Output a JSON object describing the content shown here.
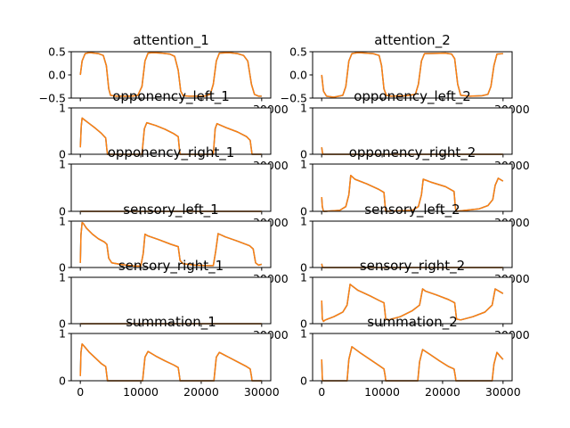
{
  "figure": {
    "colors": {
      "series_a": "#1f77b4",
      "series_b": "#ff7f0e"
    }
  },
  "chart_data": [
    {
      "type": "line",
      "title": "attention_1",
      "column": 1,
      "row": 1,
      "xlim": [
        -1500,
        31500
      ],
      "ylim": [
        -0.5,
        0.5
      ],
      "yticks": [
        -0.5,
        0.0,
        0.5
      ],
      "ytick_labels": [
        "−0.5",
        "0.0",
        "0.5"
      ],
      "xticks": [
        0,
        10000,
        20000,
        30000
      ],
      "xtick_labels": [
        "0",
        "10000",
        "20000",
        "30000"
      ],
      "show_xtick_labels": false,
      "visible_partial_xtick_label": "30000",
      "series": [
        {
          "x": [
            0,
            300,
            800,
            1500,
            3000,
            3800,
            4300,
            4700,
            5000,
            6000,
            8500,
            9500,
            10200,
            10700,
            11200,
            12000,
            13500,
            14800,
            15600,
            16200,
            16600,
            17000,
            18000,
            20500,
            21500,
            22000,
            22500,
            23000,
            24500,
            26000,
            27000,
            27700,
            28300,
            28800,
            29500,
            30000
          ],
          "y": [
            0.0,
            0.3,
            0.46,
            0.48,
            0.46,
            0.42,
            0.2,
            -0.3,
            -0.44,
            -0.46,
            -0.46,
            -0.44,
            -0.25,
            0.3,
            0.47,
            0.48,
            0.47,
            0.45,
            0.4,
            0.1,
            -0.35,
            -0.45,
            -0.46,
            -0.46,
            -0.42,
            -0.2,
            0.3,
            0.47,
            0.48,
            0.46,
            0.42,
            0.3,
            -0.2,
            -0.42,
            -0.46,
            -0.46
          ]
        }
      ]
    },
    {
      "type": "line",
      "title": "attention_2",
      "column": 2,
      "row": 1,
      "xlim": [
        -1500,
        31500
      ],
      "ylim": [
        -0.5,
        0.5
      ],
      "yticks": [
        -0.5,
        0.0,
        0.5
      ],
      "ytick_labels": [
        "−0.5",
        "0.0",
        "0.5"
      ],
      "xticks": [
        0,
        10000,
        20000,
        30000
      ],
      "xtick_labels": [
        "0",
        "10000",
        "20000",
        "30000"
      ],
      "show_xtick_labels": false,
      "visible_partial_xtick_label": "30000",
      "series": [
        {
          "x": [
            0,
            300,
            800,
            2000,
            3500,
            4000,
            4500,
            5000,
            6000,
            8500,
            9500,
            9900,
            10300,
            10700,
            11500,
            14000,
            15500,
            16000,
            16500,
            17000,
            20500,
            21500,
            22000,
            22500,
            23000,
            24500,
            26500,
            27500,
            28000,
            28500,
            29000,
            30000
          ],
          "y": [
            0.0,
            -0.35,
            -0.46,
            -0.48,
            -0.44,
            -0.25,
            0.3,
            0.46,
            0.48,
            0.46,
            0.42,
            0.2,
            -0.3,
            -0.44,
            -0.46,
            -0.45,
            -0.42,
            -0.2,
            0.3,
            0.46,
            0.47,
            0.45,
            0.35,
            -0.2,
            -0.44,
            -0.46,
            -0.45,
            -0.42,
            -0.25,
            0.2,
            0.45,
            0.46
          ]
        }
      ]
    },
    {
      "type": "line",
      "title": "opponency_left_1",
      "column": 1,
      "row": 2,
      "xlim": [
        -1500,
        31500
      ],
      "ylim": [
        0,
        1
      ],
      "yticks": [
        0,
        1
      ],
      "ytick_labels": [
        "0",
        "1"
      ],
      "xticks": [
        0,
        10000,
        20000,
        30000
      ],
      "xtick_labels": [
        "0",
        "10000",
        "20000",
        "30000"
      ],
      "show_xtick_labels": false,
      "visible_partial_xtick_label": "30000",
      "series": [
        {
          "x": [
            0,
            150,
            300,
            700,
            1500,
            2500,
            3500,
            4200,
            4400,
            4500,
            10200,
            10600,
            11000,
            12500,
            14000,
            15500,
            16200,
            16400,
            16500,
            22000,
            22300,
            22600,
            24000,
            26000,
            27500,
            28100,
            28300,
            28400,
            30000
          ],
          "y": [
            0.15,
            0.6,
            0.78,
            0.74,
            0.66,
            0.56,
            0.45,
            0.35,
            0.1,
            0.0,
            0.0,
            0.55,
            0.68,
            0.62,
            0.54,
            0.44,
            0.38,
            0.1,
            0.0,
            0.0,
            0.55,
            0.66,
            0.58,
            0.48,
            0.38,
            0.3,
            0.1,
            0.0,
            0.0
          ]
        }
      ]
    },
    {
      "type": "line",
      "title": "opponency_left_2",
      "column": 2,
      "row": 2,
      "xlim": [
        -1500,
        31500
      ],
      "ylim": [
        0,
        1
      ],
      "yticks": [
        0,
        1
      ],
      "ytick_labels": [
        "0",
        "1"
      ],
      "xticks": [
        0,
        10000,
        20000,
        30000
      ],
      "xtick_labels": [
        "0",
        "10000",
        "20000",
        "30000"
      ],
      "show_xtick_labels": false,
      "visible_partial_xtick_label": "30000",
      "series": [
        {
          "x": [
            0,
            100,
            200,
            30000
          ],
          "y": [
            0.15,
            0.05,
            0.0,
            0.0
          ]
        }
      ]
    },
    {
      "type": "line",
      "title": "opponency_right_1",
      "column": 1,
      "row": 3,
      "xlim": [
        -1500,
        31500
      ],
      "ylim": [
        0,
        1
      ],
      "yticks": [
        0,
        1
      ],
      "ytick_labels": [
        "0",
        "1"
      ],
      "xticks": [
        0,
        10000,
        20000,
        30000
      ],
      "xtick_labels": [
        "0",
        "10000",
        "20000",
        "30000"
      ],
      "show_xtick_labels": false,
      "visible_partial_xtick_label": "30000",
      "series": [
        {
          "x": [
            0,
            30000
          ],
          "y": [
            0.0,
            0.0
          ]
        }
      ]
    },
    {
      "type": "line",
      "title": "opponency_right_2",
      "column": 2,
      "row": 3,
      "xlim": [
        -1500,
        31500
      ],
      "ylim": [
        0,
        1
      ],
      "yticks": [
        0,
        1
      ],
      "ytick_labels": [
        "0",
        "1"
      ],
      "xticks": [
        0,
        10000,
        20000,
        30000
      ],
      "xtick_labels": [
        "0",
        "10000",
        "20000",
        "30000"
      ],
      "show_xtick_labels": false,
      "visible_partial_xtick_label": "30000",
      "series": [
        {
          "x": [
            0,
            100,
            300,
            500,
            3000,
            4000,
            4500,
            4800,
            5500,
            7500,
            9500,
            10300,
            10500,
            10600,
            15000,
            16000,
            16500,
            16800,
            18000,
            20500,
            21900,
            22100,
            22200,
            26000,
            27500,
            28300,
            28700,
            29200,
            30000
          ],
          "y": [
            0.3,
            0.1,
            0.0,
            0.0,
            0.02,
            0.1,
            0.35,
            0.76,
            0.68,
            0.58,
            0.46,
            0.4,
            0.1,
            0.0,
            0.02,
            0.1,
            0.35,
            0.68,
            0.62,
            0.52,
            0.42,
            0.1,
            0.0,
            0.05,
            0.12,
            0.25,
            0.55,
            0.7,
            0.64
          ]
        }
      ]
    },
    {
      "type": "line",
      "title": "sensory_left_1",
      "column": 1,
      "row": 4,
      "xlim": [
        -1500,
        31500
      ],
      "ylim": [
        0,
        1
      ],
      "yticks": [
        0,
        1
      ],
      "ytick_labels": [
        "0",
        "1"
      ],
      "xticks": [
        0,
        10000,
        20000,
        30000
      ],
      "xtick_labels": [
        "0",
        "10000",
        "20000",
        "30000"
      ],
      "show_xtick_labels": false,
      "visible_partial_xtick_label": "30000",
      "series": [
        {
          "x": [
            0,
            100,
            300,
            500,
            1000,
            2000,
            3000,
            4000,
            4400,
            4700,
            5200,
            7000,
            9000,
            10000,
            10400,
            10700,
            11200,
            13000,
            15000,
            16200,
            16500,
            17000,
            19000,
            21000,
            22000,
            22400,
            22800,
            24000,
            26000,
            28000,
            28600,
            29000,
            29500,
            30000
          ],
          "y": [
            0.1,
            0.7,
            0.97,
            0.95,
            0.85,
            0.72,
            0.62,
            0.55,
            0.5,
            0.2,
            0.1,
            0.06,
            0.03,
            0.03,
            0.3,
            0.72,
            0.68,
            0.6,
            0.5,
            0.45,
            0.15,
            0.08,
            0.05,
            0.04,
            0.04,
            0.35,
            0.73,
            0.66,
            0.57,
            0.47,
            0.4,
            0.1,
            0.05,
            0.07
          ]
        }
      ]
    },
    {
      "type": "line",
      "title": "sensory_left_2",
      "column": 2,
      "row": 4,
      "xlim": [
        -1500,
        31500
      ],
      "ylim": [
        0,
        1
      ],
      "yticks": [
        0,
        1
      ],
      "ytick_labels": [
        "0",
        "1"
      ],
      "xticks": [
        0,
        10000,
        20000,
        30000
      ],
      "xtick_labels": [
        "0",
        "10000",
        "20000",
        "30000"
      ],
      "show_xtick_labels": false,
      "visible_partial_xtick_label": "30000",
      "series": [
        {
          "x": [
            0,
            100,
            200,
            30000
          ],
          "y": [
            0.08,
            0.02,
            0.0,
            0.0
          ]
        }
      ]
    },
    {
      "type": "line",
      "title": "sensory_right_1",
      "column": 1,
      "row": 5,
      "xlim": [
        -1500,
        31500
      ],
      "ylim": [
        0,
        1
      ],
      "yticks": [
        0,
        1
      ],
      "ytick_labels": [
        "0",
        "1"
      ],
      "xticks": [
        0,
        10000,
        20000,
        30000
      ],
      "xtick_labels": [
        "0",
        "10000",
        "20000",
        "30000"
      ],
      "show_xtick_labels": false,
      "visible_partial_xtick_label": "30000",
      "series": [
        {
          "x": [
            0,
            30000
          ],
          "y": [
            0.0,
            0.0
          ]
        }
      ]
    },
    {
      "type": "line",
      "title": "sensory_right_2",
      "column": 2,
      "row": 5,
      "xlim": [
        -1500,
        31500
      ],
      "ylim": [
        0,
        1
      ],
      "yticks": [
        0,
        1
      ],
      "ytick_labels": [
        "0",
        "1"
      ],
      "xticks": [
        0,
        10000,
        20000,
        30000
      ],
      "xtick_labels": [
        "0",
        "10000",
        "20000",
        "30000"
      ],
      "show_xtick_labels": false,
      "visible_partial_xtick_label": "30000",
      "series": [
        {
          "x": [
            0,
            100,
            300,
            600,
            2000,
            3500,
            4200,
            4700,
            5000,
            6000,
            8000,
            9500,
            10300,
            10600,
            11000,
            13000,
            15000,
            16200,
            16700,
            17200,
            19000,
            21000,
            22000,
            22300,
            23000,
            25000,
            27000,
            28200,
            28700,
            29100,
            30000
          ],
          "y": [
            0.5,
            0.1,
            0.05,
            0.08,
            0.15,
            0.25,
            0.4,
            0.85,
            0.82,
            0.72,
            0.6,
            0.5,
            0.45,
            0.1,
            0.08,
            0.15,
            0.28,
            0.4,
            0.75,
            0.7,
            0.62,
            0.52,
            0.45,
            0.1,
            0.08,
            0.15,
            0.25,
            0.4,
            0.75,
            0.72,
            0.65
          ]
        }
      ]
    },
    {
      "type": "line",
      "title": "summation_1",
      "column": 1,
      "row": 6,
      "xlim": [
        -1500,
        31500
      ],
      "ylim": [
        0,
        1
      ],
      "yticks": [
        0,
        1
      ],
      "ytick_labels": [
        "0",
        "1"
      ],
      "xticks": [
        0,
        10000,
        20000,
        30000
      ],
      "xtick_labels": [
        "0",
        "10000",
        "20000",
        "30000"
      ],
      "show_xtick_labels": true,
      "series": [
        {
          "x": [
            0,
            100,
            300,
            700,
            1500,
            2500,
            3500,
            4200,
            4400,
            4500,
            10300,
            10700,
            11200,
            12500,
            14000,
            15500,
            16200,
            16400,
            16500,
            22100,
            22500,
            23000,
            24500,
            26000,
            27500,
            28100,
            28300,
            28400,
            30000
          ],
          "y": [
            0.1,
            0.6,
            0.78,
            0.72,
            0.6,
            0.48,
            0.36,
            0.3,
            0.1,
            0.0,
            0.0,
            0.5,
            0.62,
            0.52,
            0.42,
            0.33,
            0.28,
            0.1,
            0.0,
            0.0,
            0.5,
            0.6,
            0.5,
            0.4,
            0.3,
            0.25,
            0.1,
            0.0,
            0.0
          ]
        }
      ]
    },
    {
      "type": "line",
      "title": "summation_2",
      "column": 2,
      "row": 6,
      "xlim": [
        -1500,
        31500
      ],
      "ylim": [
        0,
        1
      ],
      "yticks": [
        0,
        1
      ],
      "ytick_labels": [
        "0",
        "1"
      ],
      "xticks": [
        0,
        10000,
        20000,
        30000
      ],
      "xtick_labels": [
        "0",
        "10000",
        "20000",
        "30000"
      ],
      "show_xtick_labels": true,
      "series": [
        {
          "x": [
            0,
            100,
            200,
            4200,
            4500,
            5000,
            6500,
            8000,
            9500,
            10300,
            10500,
            10600,
            15900,
            16200,
            16700,
            18000,
            19500,
            21000,
            21900,
            22100,
            22200,
            28200,
            28500,
            29000,
            29500,
            30000
          ],
          "y": [
            0.45,
            0.05,
            0.0,
            0.0,
            0.45,
            0.72,
            0.58,
            0.45,
            0.32,
            0.25,
            0.1,
            0.0,
            0.0,
            0.4,
            0.66,
            0.55,
            0.42,
            0.3,
            0.25,
            0.1,
            0.0,
            0.0,
            0.35,
            0.6,
            0.52,
            0.45
          ]
        }
      ]
    }
  ]
}
